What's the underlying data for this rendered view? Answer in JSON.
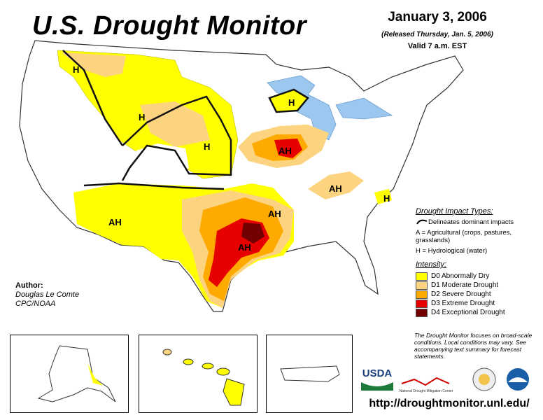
{
  "header": {
    "title": "U.S. Drought Monitor",
    "date": "January 3, 2006",
    "released": "(Released Thursday, Jan. 5, 2006)",
    "valid": "Valid 7 a.m. EST"
  },
  "map_labels": [
    "H",
    "H",
    "H",
    "H",
    "AH",
    "AH",
    "AH",
    "AH",
    "AH",
    "H"
  ],
  "author": {
    "label": "Author:",
    "name": "Douglas Le Comte",
    "org": "CPC/NOAA"
  },
  "legend": {
    "impact_title": "Drought Impact Types:",
    "delineates": "Delineates dominant impacts",
    "agricultural": "A = Agricultural (crops, pastures, grasslands)",
    "hydrological": "H = Hydrological (water)",
    "intensity_title": "Intensity:",
    "levels": [
      {
        "label": "D0 Abnormally Dry",
        "color": "#ffff00"
      },
      {
        "label": "D1 Moderate Drought",
        "color": "#fcd37f"
      },
      {
        "label": "D2 Severe Drought",
        "color": "#ffaa00"
      },
      {
        "label": "D3 Extreme Drought",
        "color": "#e60000"
      },
      {
        "label": "D4 Exceptional Drought",
        "color": "#730000"
      }
    ]
  },
  "note": "The Drought Monitor focuses on broad-scale conditions. Local conditions may vary. See accompanying text summary for forecast statements.",
  "logos": {
    "usda": "USDA",
    "ndmc": "National Drought Mitigation Center"
  },
  "url": "http://droughtmonitor.unl.edu/"
}
